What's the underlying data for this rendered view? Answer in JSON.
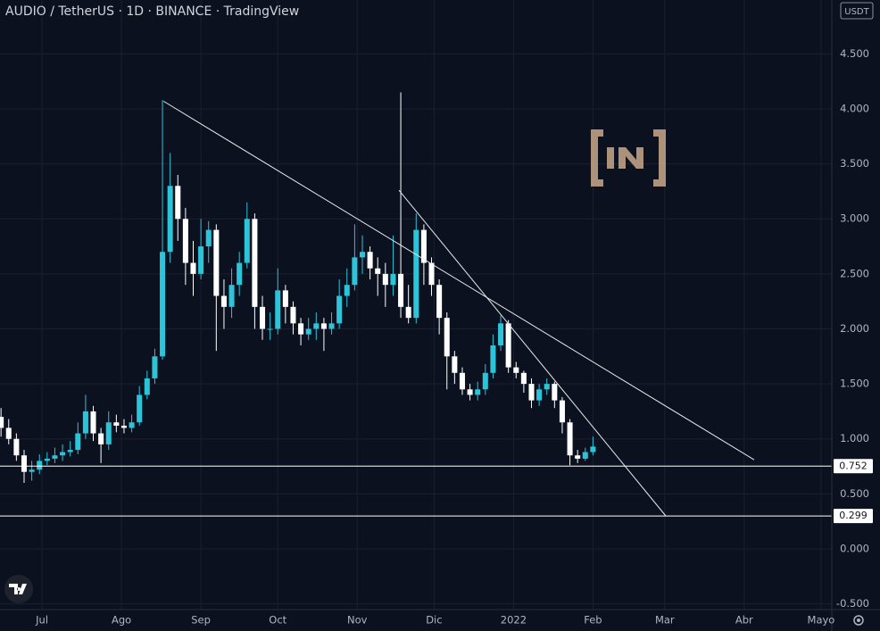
{
  "chart_data": {
    "type": "candlestick",
    "title": "AUDIO / TetherUS · 1D · BINANCE · TradingView",
    "currency": "USDT",
    "up_color": "#2bc4d8",
    "down_color": "#ffffff",
    "x": [
      -16,
      -13,
      -10,
      -7,
      -4,
      -1,
      2,
      5,
      8,
      11,
      14,
      17,
      20,
      23,
      26,
      29,
      32,
      35,
      38,
      41,
      44,
      47,
      50,
      53,
      56,
      59,
      62,
      65,
      68,
      71,
      74,
      77,
      80,
      83,
      86,
      89,
      92,
      95,
      98,
      101,
      104,
      107,
      110,
      113,
      116,
      119,
      122,
      125,
      128,
      131,
      134,
      137,
      140,
      143,
      146,
      149,
      152,
      155,
      158,
      161,
      164,
      167,
      170,
      173,
      176,
      179,
      182,
      185,
      188,
      191,
      194,
      197,
      200,
      203,
      206,
      209,
      212,
      215
    ],
    "open": [
      1.2,
      1.1,
      1.0,
      0.85,
      0.7,
      0.72,
      0.8,
      0.82,
      0.85,
      0.88,
      0.9,
      1.05,
      1.25,
      1.05,
      0.95,
      1.15,
      1.12,
      1.1,
      1.15,
      1.4,
      1.55,
      1.75,
      2.7,
      3.3,
      3.0,
      2.6,
      2.5,
      2.75,
      2.9,
      2.3,
      2.2,
      2.4,
      2.6,
      3.0,
      2.2,
      2.0,
      2.0,
      2.35,
      2.2,
      2.05,
      1.95,
      2.0,
      2.05,
      2.0,
      2.05,
      2.3,
      2.4,
      2.65,
      2.7,
      2.55,
      2.5,
      2.4,
      2.5,
      2.2,
      2.1,
      2.9,
      2.6,
      2.4,
      2.1,
      1.75,
      1.6,
      1.45,
      1.4,
      1.45,
      1.6,
      1.85,
      2.05,
      1.65,
      1.6,
      1.5,
      1.35,
      1.45,
      1.5,
      1.35,
      1.15,
      0.85,
      0.82,
      0.88
    ],
    "high": [
      1.28,
      1.18,
      1.05,
      0.9,
      0.8,
      0.86,
      0.88,
      0.92,
      0.95,
      0.98,
      1.15,
      1.4,
      1.3,
      1.1,
      1.25,
      1.22,
      1.18,
      1.22,
      1.48,
      1.62,
      1.82,
      4.08,
      3.6,
      3.4,
      3.1,
      2.8,
      3.0,
      2.98,
      2.95,
      2.45,
      2.55,
      2.7,
      3.15,
      3.05,
      2.3,
      2.15,
      2.55,
      2.4,
      2.25,
      2.1,
      2.1,
      2.15,
      2.1,
      2.15,
      2.45,
      2.55,
      2.95,
      2.85,
      2.75,
      2.65,
      2.6,
      2.85,
      4.15,
      2.4,
      3.05,
      2.95,
      2.65,
      2.45,
      2.15,
      1.8,
      1.65,
      1.5,
      1.52,
      1.68,
      1.95,
      2.12,
      2.08,
      1.7,
      1.62,
      1.55,
      1.5,
      1.55,
      1.52,
      1.38,
      1.18,
      0.9,
      0.92,
      1.02
    ],
    "low": [
      1.02,
      0.95,
      0.8,
      0.6,
      0.62,
      0.68,
      0.76,
      0.78,
      0.8,
      0.84,
      0.86,
      1.0,
      0.98,
      0.78,
      0.9,
      1.06,
      1.05,
      1.06,
      1.12,
      1.36,
      1.5,
      1.72,
      2.6,
      2.8,
      2.4,
      2.3,
      2.45,
      2.6,
      1.8,
      2.0,
      2.1,
      2.3,
      2.55,
      2.0,
      1.9,
      1.9,
      1.95,
      2.05,
      1.95,
      1.85,
      1.9,
      1.9,
      1.8,
      1.95,
      2.0,
      2.2,
      2.35,
      2.5,
      2.45,
      2.3,
      2.2,
      2.3,
      2.1,
      2.05,
      2.05,
      2.4,
      2.3,
      1.95,
      1.45,
      1.5,
      1.4,
      1.35,
      1.35,
      1.4,
      1.55,
      1.8,
      1.6,
      1.55,
      1.42,
      1.28,
      1.3,
      1.4,
      1.28,
      1.05,
      0.76,
      0.78,
      0.8,
      0.85
    ],
    "close": [
      1.1,
      1.0,
      0.85,
      0.7,
      0.72,
      0.8,
      0.82,
      0.85,
      0.88,
      0.9,
      1.05,
      1.25,
      1.05,
      0.95,
      1.15,
      1.12,
      1.1,
      1.15,
      1.4,
      1.55,
      1.75,
      2.7,
      3.3,
      3.0,
      2.6,
      2.5,
      2.75,
      2.9,
      2.3,
      2.2,
      2.4,
      2.6,
      3.0,
      2.2,
      2.0,
      2.0,
      2.35,
      2.2,
      2.05,
      1.95,
      2.0,
      2.05,
      2.0,
      2.05,
      2.3,
      2.4,
      2.65,
      2.7,
      2.55,
      2.5,
      2.4,
      2.5,
      2.2,
      2.1,
      2.9,
      2.6,
      2.4,
      2.1,
      1.75,
      1.6,
      1.45,
      1.4,
      1.45,
      1.6,
      1.85,
      2.05,
      1.65,
      1.6,
      1.5,
      1.35,
      1.45,
      1.5,
      1.35,
      1.15,
      0.85,
      0.82,
      0.88,
      0.93
    ],
    "xlim": [
      -16.4,
      308.2
    ],
    "ylim": [
      -0.552,
      4.99
    ],
    "xticks": [
      {
        "value": 0,
        "label": "Jul"
      },
      {
        "value": 31,
        "label": "Ago"
      },
      {
        "value": 62,
        "label": "Sep"
      },
      {
        "value": 92,
        "label": "Oct"
      },
      {
        "value": 123,
        "label": "Nov"
      },
      {
        "value": 153,
        "label": "Dic"
      },
      {
        "value": 184,
        "label": "2022"
      },
      {
        "value": 215,
        "label": "Feb"
      },
      {
        "value": 243,
        "label": "Mar"
      },
      {
        "value": 274,
        "label": "Abr"
      },
      {
        "value": 304,
        "label": "Mayo"
      }
    ],
    "yticks": [
      {
        "value": -0.5,
        "label": "-0.500"
      },
      {
        "value": 0,
        "label": "0.000"
      },
      {
        "value": 0.5,
        "label": "0.500"
      },
      {
        "value": 1,
        "label": "1.000"
      },
      {
        "value": 1.5,
        "label": "1.500"
      },
      {
        "value": 2,
        "label": "2.000"
      },
      {
        "value": 2.5,
        "label": "2.500"
      },
      {
        "value": 3,
        "label": "3.000"
      },
      {
        "value": 3.5,
        "label": "3.500"
      },
      {
        "value": 4,
        "label": "4.000"
      },
      {
        "value": 4.5,
        "label": "4.500"
      }
    ],
    "grid": true,
    "hlines": [
      0.752,
      0.299
    ],
    "trendlines": [
      {
        "x": [
          47.4,
          277.9
        ],
        "y": [
          4.07,
          0.81
        ]
      },
      {
        "x": [
          139.3,
          243.4
        ],
        "y": [
          3.26,
          0.3
        ]
      }
    ]
  }
}
